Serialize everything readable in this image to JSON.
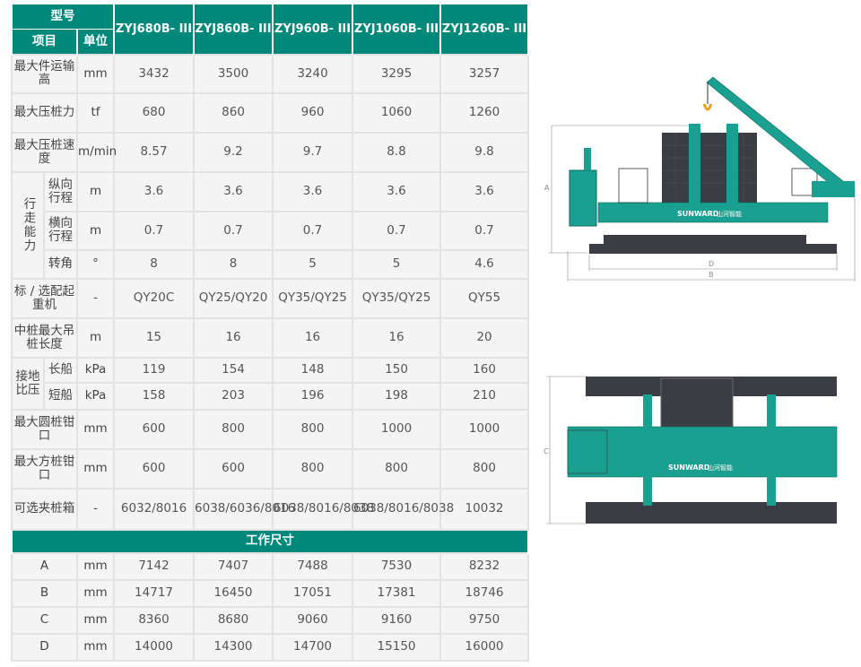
{
  "header": {
    "model_label": "型号",
    "item_label": "项目",
    "unit_label": "单位",
    "models": [
      "ZYJ680B- III",
      "ZYJ860B- III",
      "ZYJ960B- III",
      "ZYJ1060B- III",
      "ZYJ1260B- III"
    ]
  },
  "rows": [
    {
      "item": "最大件运输高",
      "unit": "mm",
      "values": [
        "3432",
        "3500",
        "3240",
        "3295",
        "3257"
      ]
    },
    {
      "item": "最大压桩力",
      "unit": "tf",
      "values": [
        "680",
        "860",
        "960",
        "1060",
        "1260"
      ]
    },
    {
      "item": "最大压桩速度",
      "unit": "m/min",
      "values": [
        "8.57",
        "9.2",
        "9.7",
        "8.8",
        "9.8"
      ]
    }
  ],
  "travel": {
    "group": "行走能力",
    "rows": [
      {
        "item": "纵向行程",
        "unit": "m",
        "values": [
          "3.6",
          "3.6",
          "3.6",
          "3.6",
          "3.6"
        ]
      },
      {
        "item": "横向行程",
        "unit": "m",
        "values": [
          "0.7",
          "0.7",
          "0.7",
          "0.7",
          "0.7"
        ]
      },
      {
        "item": "转角",
        "unit": "°",
        "values": [
          "8",
          "8",
          "5",
          "5",
          "4.6"
        ]
      }
    ]
  },
  "rows2": [
    {
      "item": "标 / 选配起重机",
      "unit": "-",
      "values": [
        "QY20C",
        "QY25/QY20",
        "QY35/QY25",
        "QY35/QY25",
        "QY55"
      ]
    },
    {
      "item": "中桩最大吊桩长度",
      "unit": "m",
      "values": [
        "15",
        "16",
        "16",
        "16",
        "20"
      ]
    }
  ],
  "pressure": {
    "group": "接地比压",
    "rows": [
      {
        "item": "长船",
        "unit": "kPa",
        "values": [
          "119",
          "154",
          "148",
          "150",
          "160"
        ]
      },
      {
        "item": "短船",
        "unit": "kPa",
        "values": [
          "158",
          "203",
          "196",
          "198",
          "210"
        ]
      }
    ]
  },
  "rows3": [
    {
      "item": "最大圆桩钳口",
      "unit": "mm",
      "values": [
        "600",
        "800",
        "800",
        "1000",
        "1000"
      ]
    },
    {
      "item": "最大方桩钳口",
      "unit": "mm",
      "values": [
        "600",
        "600",
        "800",
        "800",
        "800"
      ]
    },
    {
      "item": "可选夹桩箱",
      "unit": "-",
      "values": [
        "6032/8016",
        "6038/6036/8016",
        "6038/8016/8038",
        "6038/8016/8038",
        "10032"
      ]
    }
  ],
  "section_title": "工作尺寸",
  "dims": [
    {
      "item": "A",
      "unit": "mm",
      "values": [
        "7142",
        "7407",
        "7488",
        "7530",
        "8232"
      ]
    },
    {
      "item": "B",
      "unit": "mm",
      "values": [
        "14717",
        "16450",
        "17051",
        "17381",
        "18746"
      ]
    },
    {
      "item": "C",
      "unit": "mm",
      "values": [
        "8360",
        "8680",
        "9060",
        "9160",
        "9750"
      ]
    },
    {
      "item": "D",
      "unit": "mm",
      "values": [
        "14000",
        "14300",
        "14700",
        "15150",
        "16000"
      ]
    }
  ],
  "drawing": {
    "brand": "SUNWARD",
    "brand_cn": "山河智能",
    "labels": {
      "a": "A",
      "b": "B",
      "c": "C",
      "d": "D"
    }
  },
  "colors": {
    "teal": "#00897b",
    "dark": "#3a3d44",
    "hook": "#f0a020"
  }
}
